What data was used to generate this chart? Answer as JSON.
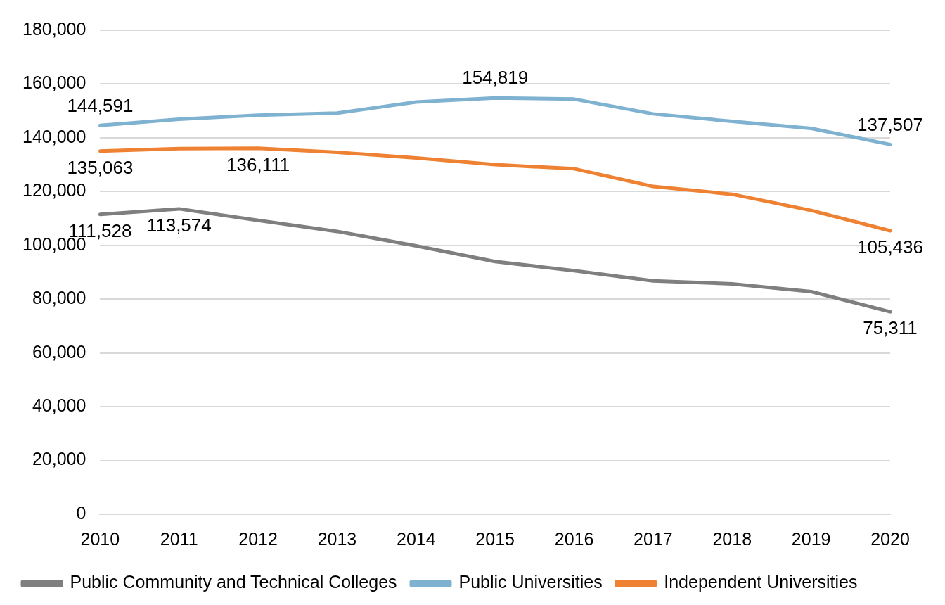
{
  "chart_data": {
    "type": "line",
    "categories": [
      "2010",
      "2011",
      "2012",
      "2013",
      "2014",
      "2015",
      "2016",
      "2017",
      "2018",
      "2019",
      "2020"
    ],
    "series": [
      {
        "name": "Public Community and Technical Colleges",
        "color": "#7f7f7f",
        "values": [
          111528,
          113574,
          109300,
          105200,
          99800,
          94000,
          90600,
          86800,
          85700,
          82800,
          75311
        ],
        "value_labels": [
          "111,528",
          "113,574",
          null,
          null,
          null,
          null,
          null,
          null,
          null,
          null,
          "75,311"
        ]
      },
      {
        "name": "Public Universities",
        "color": "#7fb2d0",
        "values": [
          144591,
          146900,
          148400,
          149200,
          153300,
          154819,
          154400,
          148900,
          146100,
          143500,
          137507
        ],
        "value_labels": [
          "144,591",
          null,
          null,
          null,
          null,
          "154,819",
          null,
          null,
          null,
          null,
          "137,507"
        ]
      },
      {
        "name": "Independent Universities",
        "color": "#ef8133",
        "values": [
          135063,
          136000,
          136111,
          134600,
          132500,
          130000,
          128500,
          121900,
          119000,
          113000,
          105436
        ],
        "value_labels": [
          "135,063",
          null,
          "136,111",
          null,
          null,
          null,
          null,
          null,
          null,
          null,
          "105,436"
        ]
      }
    ],
    "ylim": [
      0,
      180000
    ],
    "yticks": [
      0,
      {
        "value": 20000,
        "label": "20,000"
      },
      {
        "value": 40000,
        "label": "40,000"
      },
      {
        "value": 60000,
        "label": "60,000"
      },
      {
        "value": 80000,
        "label": "80,000"
      },
      {
        "value": 100000,
        "label": "100,000"
      },
      {
        "value": 120000,
        "label": "120,000"
      },
      {
        "value": 140000,
        "label": "140,000"
      },
      {
        "value": 160000,
        "label": "160,000"
      },
      {
        "value": 180000,
        "label": "180,000"
      }
    ],
    "grid": "y",
    "legend": "bottom",
    "marker": "none",
    "line_style": "solid"
  }
}
